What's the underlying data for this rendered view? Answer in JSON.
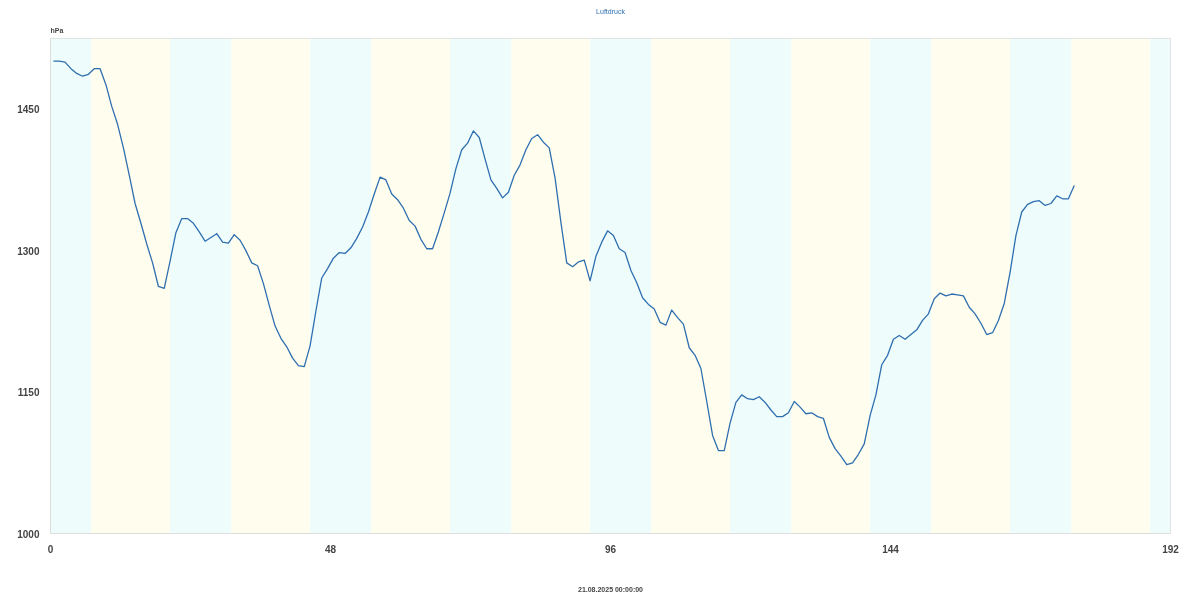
{
  "chart_data": {
    "type": "line",
    "title": "Luftdruck",
    "xlabel": "21.08.2025 00:00:00",
    "ylabel": "hPa",
    "x": [
      0.5,
      1.5,
      2.5,
      3.5,
      4.5,
      5.5,
      6.5,
      7.5,
      8.5,
      9.5,
      10.5,
      11.5,
      12.5,
      13.5,
      14.5,
      15.5,
      16.5,
      17.5,
      18.5,
      19.5,
      20.5,
      21.5,
      22.5,
      23.5,
      24.5,
      25.5,
      26.5,
      27.5,
      28.5,
      29.5,
      30.5,
      31.5,
      32.5,
      33.5,
      34.5,
      35.5,
      36.5,
      37.5,
      38.5,
      39.5,
      40.5,
      41.5,
      42.5,
      43.5,
      44.5,
      45.5,
      46.5,
      47.5,
      48.5,
      49.5,
      50.5,
      51.5,
      52.5,
      53.5,
      54.5,
      55.5,
      56.5,
      57.5,
      58.5,
      59.5,
      60.5,
      61.5,
      62.5,
      63.5,
      64.5,
      65.5,
      66.5,
      67.5,
      68.5,
      69.5,
      70.5,
      71.5,
      72.5,
      73.5,
      74.5,
      75.5,
      76.5,
      77.5,
      78.5,
      79.5,
      80.5,
      81.5,
      82.5,
      83.5,
      84.5,
      85.5,
      86.5,
      87.5,
      88.5,
      89.5,
      90.5,
      91.5,
      92.5,
      93.5,
      94.5,
      95.5,
      96.5,
      97.5,
      98.5,
      99.5,
      100.5,
      101.5,
      102.5,
      103.5,
      104.5,
      105.5,
      106.5,
      107.5,
      108.5,
      109.5,
      110.5,
      111.5,
      112.5,
      113.5,
      114.5,
      115.5,
      116.5,
      117.5,
      118.5,
      119.5,
      120.5,
      121.5,
      122.5,
      123.5,
      124.5,
      125.5,
      126.5,
      127.5,
      128.5,
      129.5,
      130.5,
      131.5,
      132.5,
      133.5,
      134.5,
      135.5,
      136.5,
      137.5,
      138.5,
      139.5,
      140.5,
      141.5,
      142.5,
      143.5,
      144.5,
      145.5,
      146.5,
      147.5,
      148.5,
      149.5,
      150.5,
      151.5,
      152.5,
      153.5,
      154.5,
      155.5,
      156.5,
      157.5,
      158.5,
      159.5,
      160.5,
      161.5,
      162.5,
      163.5,
      164.5,
      165.5,
      166.5,
      167.5,
      168.5,
      169.5,
      170.5,
      171.5,
      172.5,
      173.5,
      174.5,
      175.5
    ],
    "series": [
      {
        "color": "#2f6fb0",
        "values": [
          1501,
          1501,
          1500,
          1493,
          1488,
          1485,
          1487,
          1493,
          1493,
          1476,
          1453,
          1434,
          1409,
          1380,
          1350,
          1329,
          1307,
          1287,
          1262,
          1260,
          1289,
          1319,
          1334,
          1334,
          1329,
          1320,
          1310,
          1314,
          1318,
          1309,
          1308,
          1317,
          1311,
          1300,
          1287,
          1284,
          1265,
          1242,
          1220,
          1207,
          1198,
          1186,
          1178,
          1177,
          1199,
          1236,
          1271,
          1281,
          1292,
          1298,
          1297,
          1303,
          1313,
          1325,
          1341,
          1360,
          1378,
          1375,
          1360,
          1354,
          1345,
          1332,
          1326,
          1312,
          1302,
          1302,
          1320,
          1340,
          1361,
          1387,
          1407,
          1414,
          1427,
          1420,
          1397,
          1375,
          1366,
          1356,
          1362,
          1380,
          1391,
          1407,
          1419,
          1423,
          1415,
          1409,
          1377,
          1330,
          1287,
          1283,
          1288,
          1290,
          1268,
          1294,
          1309,
          1321,
          1316,
          1302,
          1298,
          1279,
          1266,
          1250,
          1243,
          1238,
          1224,
          1221,
          1237,
          1229,
          1222,
          1197,
          1189,
          1175,
          1140,
          1104,
          1088,
          1088,
          1117,
          1139,
          1147,
          1143,
          1142,
          1145,
          1139,
          1131,
          1124,
          1124,
          1128,
          1140,
          1134,
          1127,
          1128,
          1124,
          1122,
          1102,
          1090,
          1082,
          1073,
          1075,
          1084,
          1095,
          1125,
          1147,
          1179,
          1189,
          1206,
          1210,
          1206,
          1211,
          1216,
          1226,
          1233,
          1249,
          1255,
          1252,
          1254,
          1253,
          1252,
          1240,
          1233,
          1223,
          1211,
          1213,
          1226,
          1244,
          1277,
          1316,
          1341,
          1349,
          1352,
          1353,
          1348,
          1350,
          1358,
          1355,
          1355,
          1369
        ]
      }
    ],
    "xlim": [
      0,
      192
    ],
    "xticks": [
      0,
      48,
      96,
      144,
      192
    ],
    "ylim": [
      1000,
      1525
    ],
    "yticks": [
      1000,
      {
        "value": 1075,
        "label": null
      },
      1150,
      {
        "value": 1225,
        "label": null
      },
      1300,
      {
        "value": 1375,
        "label": null
      },
      1450,
      {
        "value": 1525,
        "label": null
      }
    ],
    "grid": true,
    "line_style": "solid",
    "marker": "none",
    "bands": [
      {
        "axis": "x",
        "from": 0,
        "to": 7,
        "color": "#eefcfc"
      },
      {
        "axis": "x",
        "from": 7,
        "to": 20.5,
        "color": "#fffdee"
      },
      {
        "axis": "x",
        "from": 20.5,
        "to": 31,
        "color": "#eefcfc"
      },
      {
        "axis": "x",
        "from": 31,
        "to": 44.5,
        "color": "#fffdee"
      },
      {
        "axis": "x",
        "from": 44.5,
        "to": 55,
        "color": "#eefcfc"
      },
      {
        "axis": "x",
        "from": 55,
        "to": 68.5,
        "color": "#fffdee"
      },
      {
        "axis": "x",
        "from": 68.5,
        "to": 79,
        "color": "#eefcfc"
      },
      {
        "axis": "x",
        "from": 79,
        "to": 92.5,
        "color": "#fffdee"
      },
      {
        "axis": "x",
        "from": 92.5,
        "to": 103,
        "color": "#eefcfc"
      },
      {
        "axis": "x",
        "from": 103,
        "to": 116.5,
        "color": "#fffdee"
      },
      {
        "axis": "x",
        "from": 116.5,
        "to": 127,
        "color": "#eefcfc"
      },
      {
        "axis": "x",
        "from": 127,
        "to": 140.5,
        "color": "#fffdee"
      },
      {
        "axis": "x",
        "from": 140.5,
        "to": 151,
        "color": "#eefcfc"
      },
      {
        "axis": "x",
        "from": 151,
        "to": 164.5,
        "color": "#fffdee"
      },
      {
        "axis": "x",
        "from": 164.5,
        "to": 175,
        "color": "#eefcfc"
      },
      {
        "axis": "x",
        "from": 175,
        "to": 188.5,
        "color": "#fffdee"
      },
      {
        "axis": "x",
        "from": 188.5,
        "to": 192,
        "color": "#eefcfc"
      }
    ]
  }
}
